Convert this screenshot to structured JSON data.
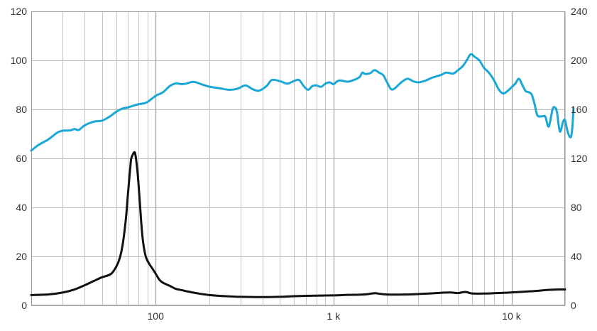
{
  "chart_data": {
    "type": "line",
    "x_scale": "log",
    "xlim": [
      20,
      20000
    ],
    "ylim_left": [
      0,
      120
    ],
    "ylim_right": [
      0,
      240
    ],
    "grid": true,
    "left_ticks": [
      {
        "value": 0,
        "label": "0"
      },
      {
        "value": 20,
        "label": "20"
      },
      {
        "value": 40,
        "label": "40"
      },
      {
        "value": 60,
        "label": "60"
      },
      {
        "value": 80,
        "label": "80"
      },
      {
        "value": 100,
        "label": "100"
      },
      {
        "value": 120,
        "label": "120"
      }
    ],
    "right_ticks": [
      {
        "value": 0,
        "label": "0"
      },
      {
        "value": 40,
        "label": "40"
      },
      {
        "value": 80,
        "label": "80"
      },
      {
        "value": 120,
        "label": "120"
      },
      {
        "value": 160,
        "label": "160"
      },
      {
        "value": 200,
        "label": "200"
      },
      {
        "value": 240,
        "label": "240"
      }
    ],
    "x_ticks": [
      {
        "value": 100,
        "label": "100"
      },
      {
        "value": 1000,
        "label": "1 k"
      },
      {
        "value": 10000,
        "label": "10 k"
      }
    ],
    "series": [
      {
        "axis": "left",
        "color": "#1ba7d6",
        "points": [
          [
            20,
            63.2
          ],
          [
            22,
            65.5
          ],
          [
            25,
            67.8
          ],
          [
            28,
            70.5
          ],
          [
            30,
            71.3
          ],
          [
            33,
            71.4
          ],
          [
            35,
            72.0
          ],
          [
            37,
            71.6
          ],
          [
            40,
            73.5
          ],
          [
            45,
            75.0
          ],
          [
            50,
            75.4
          ],
          [
            55,
            77.0
          ],
          [
            60,
            79.0
          ],
          [
            65,
            80.3
          ],
          [
            70,
            80.8
          ],
          [
            75,
            81.5
          ],
          [
            80,
            82.1
          ],
          [
            85,
            82.4
          ],
          [
            90,
            83.0
          ],
          [
            100,
            85.5
          ],
          [
            110,
            87.0
          ],
          [
            120,
            89.5
          ],
          [
            130,
            90.6
          ],
          [
            140,
            90.3
          ],
          [
            150,
            90.6
          ],
          [
            160,
            91.2
          ],
          [
            170,
            91.0
          ],
          [
            180,
            90.3
          ],
          [
            200,
            89.3
          ],
          [
            230,
            88.6
          ],
          [
            260,
            88.0
          ],
          [
            290,
            88.5
          ],
          [
            320,
            89.8
          ],
          [
            350,
            88.3
          ],
          [
            380,
            87.6
          ],
          [
            420,
            89.5
          ],
          [
            450,
            92.0
          ],
          [
            500,
            91.5
          ],
          [
            550,
            90.5
          ],
          [
            600,
            91.6
          ],
          [
            640,
            92.0
          ],
          [
            680,
            89.5
          ],
          [
            720,
            88.0
          ],
          [
            760,
            89.5
          ],
          [
            800,
            89.8
          ],
          [
            850,
            89.2
          ],
          [
            900,
            90.5
          ],
          [
            950,
            91.0
          ],
          [
            1000,
            90.3
          ],
          [
            1050,
            91.5
          ],
          [
            1100,
            91.8
          ],
          [
            1200,
            91.3
          ],
          [
            1300,
            92.0
          ],
          [
            1400,
            93.2
          ],
          [
            1450,
            95.0
          ],
          [
            1500,
            94.5
          ],
          [
            1600,
            94.7
          ],
          [
            1700,
            96.0
          ],
          [
            1800,
            95.0
          ],
          [
            1900,
            94.0
          ],
          [
            2000,
            91.0
          ],
          [
            2100,
            88.3
          ],
          [
            2200,
            88.5
          ],
          [
            2400,
            91.0
          ],
          [
            2600,
            92.5
          ],
          [
            2800,
            91.5
          ],
          [
            3000,
            91.0
          ],
          [
            3300,
            91.8
          ],
          [
            3600,
            93.0
          ],
          [
            4000,
            94.0
          ],
          [
            4300,
            95.0
          ],
          [
            4700,
            94.6
          ],
          [
            5000,
            96.0
          ],
          [
            5300,
            97.5
          ],
          [
            5600,
            100.0
          ],
          [
            5900,
            102.5
          ],
          [
            6200,
            101.5
          ],
          [
            6600,
            100.0
          ],
          [
            7000,
            97.0
          ],
          [
            7500,
            94.8
          ],
          [
            8000,
            91.7
          ],
          [
            8500,
            88.0
          ],
          [
            9000,
            86.5
          ],
          [
            9500,
            87.5
          ],
          [
            10000,
            89.0
          ],
          [
            10500,
            90.5
          ],
          [
            11000,
            92.5
          ],
          [
            11500,
            90.0
          ],
          [
            12000,
            87.5
          ],
          [
            12500,
            87.0
          ],
          [
            13000,
            86.0
          ],
          [
            13500,
            82.0
          ],
          [
            14000,
            77.5
          ],
          [
            15000,
            77.2
          ],
          [
            15500,
            77.0
          ],
          [
            16200,
            73.0
          ],
          [
            17000,
            80.0
          ],
          [
            17500,
            80.8
          ],
          [
            18000,
            79.0
          ],
          [
            18700,
            71.0
          ],
          [
            19500,
            75.0
          ],
          [
            20000,
            75.6
          ],
          [
            20500,
            72.0
          ],
          [
            21000,
            69.5
          ],
          [
            21600,
            68.8
          ],
          [
            22000,
            73.0
          ],
          [
            22300,
            80.5
          ]
        ]
      },
      {
        "axis": "right",
        "color": "#111111",
        "points": [
          [
            20,
            8.5
          ],
          [
            25,
            9.0
          ],
          [
            30,
            10.5
          ],
          [
            35,
            13.0
          ],
          [
            40,
            16.5
          ],
          [
            45,
            20.0
          ],
          [
            50,
            23.0
          ],
          [
            55,
            25.0
          ],
          [
            58,
            28.0
          ],
          [
            62,
            36.0
          ],
          [
            65,
            48.0
          ],
          [
            68,
            70.0
          ],
          [
            70,
            92.0
          ],
          [
            72,
            112.0
          ],
          [
            73,
            120.0
          ],
          [
            75,
            124.0
          ],
          [
            76,
            125.0
          ],
          [
            77,
            123.0
          ],
          [
            79,
            110.0
          ],
          [
            81,
            90.0
          ],
          [
            83,
            68.0
          ],
          [
            85,
            52.0
          ],
          [
            88,
            40.0
          ],
          [
            92,
            34.0
          ],
          [
            95,
            31.0
          ],
          [
            100,
            26.0
          ],
          [
            105,
            21.0
          ],
          [
            110,
            18.5
          ],
          [
            120,
            16.0
          ],
          [
            130,
            13.5
          ],
          [
            140,
            12.5
          ],
          [
            150,
            11.5
          ],
          [
            170,
            10.0
          ],
          [
            200,
            8.5
          ],
          [
            250,
            7.5
          ],
          [
            300,
            7.0
          ],
          [
            400,
            6.8
          ],
          [
            500,
            7.0
          ],
          [
            600,
            7.5
          ],
          [
            700,
            7.8
          ],
          [
            800,
            8.0
          ],
          [
            1000,
            8.2
          ],
          [
            1200,
            8.6
          ],
          [
            1500,
            9.0
          ],
          [
            1700,
            10.0
          ],
          [
            1800,
            9.6
          ],
          [
            2000,
            8.9
          ],
          [
            2500,
            8.9
          ],
          [
            3000,
            9.3
          ],
          [
            3500,
            9.8
          ],
          [
            4000,
            10.3
          ],
          [
            4500,
            10.6
          ],
          [
            5000,
            10.1
          ],
          [
            5500,
            11.0
          ],
          [
            6000,
            9.8
          ],
          [
            7000,
            9.7
          ],
          [
            8000,
            10.0
          ],
          [
            10000,
            10.6
          ],
          [
            12000,
            11.3
          ],
          [
            14000,
            11.9
          ],
          [
            16000,
            12.7
          ],
          [
            18000,
            13.0
          ],
          [
            20000,
            13.0
          ]
        ]
      }
    ]
  }
}
